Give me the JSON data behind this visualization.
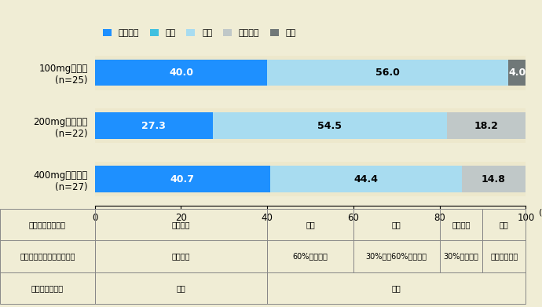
{
  "groups": [
    {
      "label": "100mg連投群\n(n=25)",
      "values": [
        40.0,
        0.0,
        56.0,
        0.0,
        4.0
      ]
    },
    {
      "label": "200mgパルス群\n(n=22)",
      "values": [
        27.3,
        0.0,
        54.5,
        18.2,
        0.0
      ]
    },
    {
      "label": "400mgパルス群\n(n=27)",
      "values": [
        40.7,
        0.0,
        44.4,
        14.8,
        0.0
      ]
    }
  ],
  "categories": [
    "完全治癒",
    "著効",
    "有効",
    "やや有効",
    "無効"
  ],
  "colors": [
    "#1E90FF",
    "#40C0E0",
    "#A8DCF0",
    "#C0C8C8",
    "#707878"
  ],
  "text_colors": [
    "white",
    "black",
    "black",
    "black",
    "white"
  ],
  "legend_labels": [
    "完全治癒",
    "著効",
    "有効",
    "やや有効",
    "無効"
  ],
  "background_color": "#F0EDD5",
  "bar_bg_color": "#EDE8CC",
  "chart_bg_color": "#F0EDD5",
  "xticks": [
    0,
    20,
    40,
    60,
    80,
    100
  ],
  "table_header": [
    "総合臨床効果判定",
    "完全治癒",
    "著効",
    "有効",
    "やや有効",
    "無効"
  ],
  "table_row2": [
    "爪甲混濁部面積比の変化率",
    "混濁なし",
    "60%以上減少",
    "30%以上60%未満減少",
    "30%未満減少",
    "不変又は増加"
  ],
  "table_row3": [
    "直接鏡検の結果",
    "陰性",
    "不問"
  ]
}
